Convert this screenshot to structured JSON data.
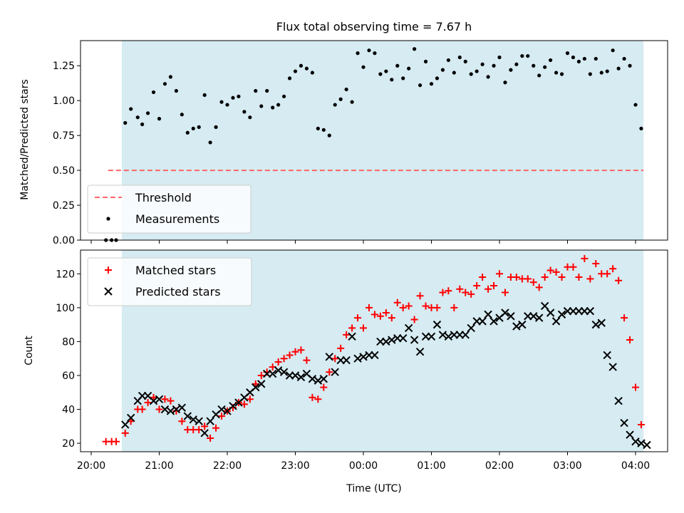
{
  "chart_data": [
    {
      "type": "scatter",
      "title": "Flux total observing time = 7.67 h",
      "xlabel": "",
      "ylabel": "Matched/Predicted stars",
      "xlim": [
        "20:00",
        "04:30"
      ],
      "ylim": [
        0,
        1.43
      ],
      "xticks": [
        "20:00",
        "21:00",
        "22:00",
        "23:00",
        "00:00",
        "01:00",
        "02:00",
        "03:00",
        "04:00"
      ],
      "yticks": [
        "0.00",
        "0.25",
        "0.50",
        "0.75",
        "1.00",
        "1.25"
      ],
      "shaded_span": {
        "start": "20:27",
        "end": "04:07",
        "color": "#add8e6"
      },
      "threshold": {
        "name": "Threshold",
        "value": 0.5,
        "from": "20:15",
        "to": "04:07",
        "color": "#ff6666",
        "style": "dashed"
      },
      "legend": {
        "location": "lower left",
        "entries": [
          "Threshold",
          "Measurements"
        ]
      },
      "series": [
        {
          "name": "Measurements",
          "color": "#000000",
          "marker": "dot",
          "x": [
            "20:13",
            "20:18",
            "20:22",
            "20:30",
            "20:35",
            "20:41",
            "20:45",
            "20:50",
            "20:55",
            "21:00",
            "21:05",
            "21:10",
            "21:15",
            "21:20",
            "21:25",
            "21:30",
            "21:35",
            "21:40",
            "21:45",
            "21:50",
            "21:55",
            "22:00",
            "22:05",
            "22:10",
            "22:15",
            "22:20",
            "22:25",
            "22:30",
            "22:35",
            "22:40",
            "22:45",
            "22:50",
            "22:55",
            "23:00",
            "23:05",
            "23:10",
            "23:15",
            "23:20",
            "23:25",
            "23:30",
            "23:35",
            "23:40",
            "23:45",
            "23:50",
            "23:55",
            "00:00",
            "00:05",
            "00:10",
            "00:15",
            "00:20",
            "00:25",
            "00:30",
            "00:35",
            "00:40",
            "00:45",
            "00:50",
            "00:55",
            "01:00",
            "01:05",
            "01:10",
            "01:15",
            "01:20",
            "01:25",
            "01:30",
            "01:35",
            "01:40",
            "01:45",
            "01:50",
            "01:55",
            "02:00",
            "02:05",
            "02:10",
            "02:15",
            "02:20",
            "02:25",
            "02:30",
            "02:35",
            "02:40",
            "02:45",
            "02:50",
            "02:55",
            "03:00",
            "03:05",
            "03:10",
            "03:15",
            "03:20",
            "03:25",
            "03:30",
            "03:35",
            "03:40",
            "03:45",
            "03:50",
            "03:55",
            "04:00",
            "04:05"
          ],
          "y": [
            0.0,
            0.0,
            0.0,
            0.84,
            0.94,
            0.88,
            0.83,
            0.91,
            1.06,
            0.87,
            1.12,
            1.17,
            1.07,
            0.9,
            0.77,
            0.8,
            0.81,
            1.04,
            0.7,
            0.81,
            0.99,
            0.97,
            1.02,
            1.03,
            0.92,
            0.88,
            1.07,
            0.96,
            1.07,
            0.95,
            0.97,
            1.03,
            1.16,
            1.21,
            1.25,
            1.23,
            1.2,
            0.8,
            0.79,
            0.75,
            0.97,
            1.01,
            1.08,
            0.99,
            1.34,
            1.24,
            1.36,
            1.34,
            1.19,
            1.21,
            1.15,
            1.25,
            1.16,
            1.23,
            1.37,
            1.11,
            1.28,
            1.12,
            1.16,
            1.22,
            1.29,
            1.2,
            1.31,
            1.28,
            1.19,
            1.21,
            1.26,
            1.17,
            1.25,
            1.31,
            1.13,
            1.22,
            1.26,
            1.32,
            1.32,
            1.25,
            1.18,
            1.24,
            1.29,
            1.2,
            1.19,
            1.34,
            1.31,
            1.28,
            1.3,
            1.19,
            1.3,
            1.2,
            1.21,
            1.36,
            1.23,
            1.3,
            1.25,
            0.97,
            0.8
          ]
        }
      ]
    },
    {
      "type": "scatter",
      "title": "",
      "xlabel": "Time (UTC)",
      "ylabel": "Count",
      "xlim": [
        "20:00",
        "04:30"
      ],
      "ylim": [
        15,
        134
      ],
      "xticks": [
        "20:00",
        "21:00",
        "22:00",
        "23:00",
        "00:00",
        "01:00",
        "02:00",
        "03:00",
        "04:00"
      ],
      "yticks": [
        "20",
        "40",
        "60",
        "80",
        "100",
        "120"
      ],
      "shaded_span": {
        "start": "20:27",
        "end": "04:07",
        "color": "#add8e6"
      },
      "legend": {
        "location": "upper left",
        "entries": [
          "Matched stars",
          "Predicted stars"
        ]
      },
      "series": [
        {
          "name": "Matched stars",
          "color": "#ff0000",
          "marker": "plus",
          "x": [
            "20:13",
            "20:18",
            "20:22",
            "20:30",
            "20:35",
            "20:41",
            "20:45",
            "20:50",
            "20:55",
            "21:00",
            "21:05",
            "21:10",
            "21:15",
            "21:20",
            "21:25",
            "21:30",
            "21:35",
            "21:40",
            "21:45",
            "21:50",
            "21:55",
            "22:00",
            "22:05",
            "22:10",
            "22:15",
            "22:20",
            "22:25",
            "22:30",
            "22:35",
            "22:40",
            "22:45",
            "22:50",
            "22:55",
            "23:00",
            "23:05",
            "23:10",
            "23:15",
            "23:20",
            "23:25",
            "23:30",
            "23:35",
            "23:40",
            "23:45",
            "23:50",
            "23:55",
            "00:00",
            "00:05",
            "00:10",
            "00:15",
            "00:20",
            "00:25",
            "00:30",
            "00:35",
            "00:40",
            "00:45",
            "00:50",
            "00:55",
            "01:00",
            "01:05",
            "01:10",
            "01:15",
            "01:20",
            "01:25",
            "01:30",
            "01:35",
            "01:40",
            "01:45",
            "01:50",
            "01:55",
            "02:00",
            "02:05",
            "02:10",
            "02:15",
            "02:20",
            "02:25",
            "02:30",
            "02:35",
            "02:40",
            "02:45",
            "02:50",
            "02:55",
            "03:00",
            "03:05",
            "03:10",
            "03:15",
            "03:20",
            "03:25",
            "03:30",
            "03:35",
            "03:40",
            "03:45",
            "03:50",
            "03:55",
            "04:00",
            "04:05"
          ],
          "y": [
            21,
            21,
            21,
            26,
            33,
            40,
            40,
            44,
            47,
            40,
            46,
            45,
            39,
            33,
            28,
            28,
            28,
            30,
            23,
            29,
            36,
            39,
            41,
            44,
            43,
            46,
            55,
            60,
            62,
            65,
            68,
            70,
            72,
            74,
            75,
            69,
            47,
            46,
            53,
            62,
            70,
            76,
            84,
            88,
            94,
            88,
            100,
            96,
            95,
            97,
            94,
            103,
            100,
            101,
            93,
            107,
            101,
            100,
            100,
            109,
            110,
            100,
            111,
            109,
            108,
            113,
            118,
            111,
            113,
            120,
            109,
            118,
            118,
            117,
            117,
            115,
            112,
            118,
            122,
            121,
            118,
            124,
            124,
            118,
            129,
            117,
            126,
            120,
            120,
            123,
            116,
            94,
            81,
            53,
            31
          ]
        },
        {
          "name": "Predicted stars",
          "color": "#000000",
          "marker": "cross",
          "x": [
            "20:30",
            "20:35",
            "20:41",
            "20:45",
            "20:50",
            "20:55",
            "21:00",
            "21:05",
            "21:10",
            "21:15",
            "21:20",
            "21:25",
            "21:30",
            "21:35",
            "21:40",
            "21:45",
            "21:50",
            "21:55",
            "22:00",
            "22:05",
            "22:10",
            "22:15",
            "22:20",
            "22:25",
            "22:30",
            "22:35",
            "22:40",
            "22:45",
            "22:50",
            "22:55",
            "23:00",
            "23:05",
            "23:10",
            "23:15",
            "23:20",
            "23:25",
            "23:30",
            "23:35",
            "23:40",
            "23:45",
            "23:50",
            "23:55",
            "00:00",
            "00:05",
            "00:10",
            "00:15",
            "00:20",
            "00:25",
            "00:30",
            "00:35",
            "00:40",
            "00:45",
            "00:50",
            "00:55",
            "01:00",
            "01:05",
            "01:10",
            "01:15",
            "01:20",
            "01:25",
            "01:30",
            "01:35",
            "01:40",
            "01:45",
            "01:50",
            "01:55",
            "02:00",
            "02:05",
            "02:10",
            "02:15",
            "02:20",
            "02:25",
            "02:30",
            "02:35",
            "02:40",
            "02:45",
            "02:50",
            "02:55",
            "03:00",
            "03:05",
            "03:10",
            "03:15",
            "03:20",
            "03:25",
            "03:30",
            "03:35",
            "03:40",
            "03:45",
            "03:50",
            "03:55",
            "04:00",
            "04:05",
            "04:10"
          ],
          "y": [
            31,
            35,
            45,
            48,
            48,
            45,
            46,
            40,
            39,
            40,
            41,
            36,
            34,
            33,
            26,
            33,
            37,
            40,
            39,
            42,
            44,
            47,
            50,
            53,
            55,
            61,
            61,
            63,
            62,
            60,
            60,
            59,
            61,
            58,
            57,
            58,
            71,
            62,
            69,
            69,
            83,
            70,
            71,
            72,
            72,
            80,
            80,
            81,
            82,
            82,
            88,
            81,
            74,
            83,
            83,
            90,
            84,
            83,
            84,
            84,
            84,
            88,
            92,
            92,
            96,
            92,
            94,
            97,
            95,
            89,
            90,
            95,
            95,
            94,
            101,
            97,
            92,
            96,
            98,
            98,
            98,
            98,
            98,
            90,
            91,
            72,
            65,
            45,
            32,
            25,
            21,
            20,
            19
          ]
        }
      ]
    }
  ]
}
